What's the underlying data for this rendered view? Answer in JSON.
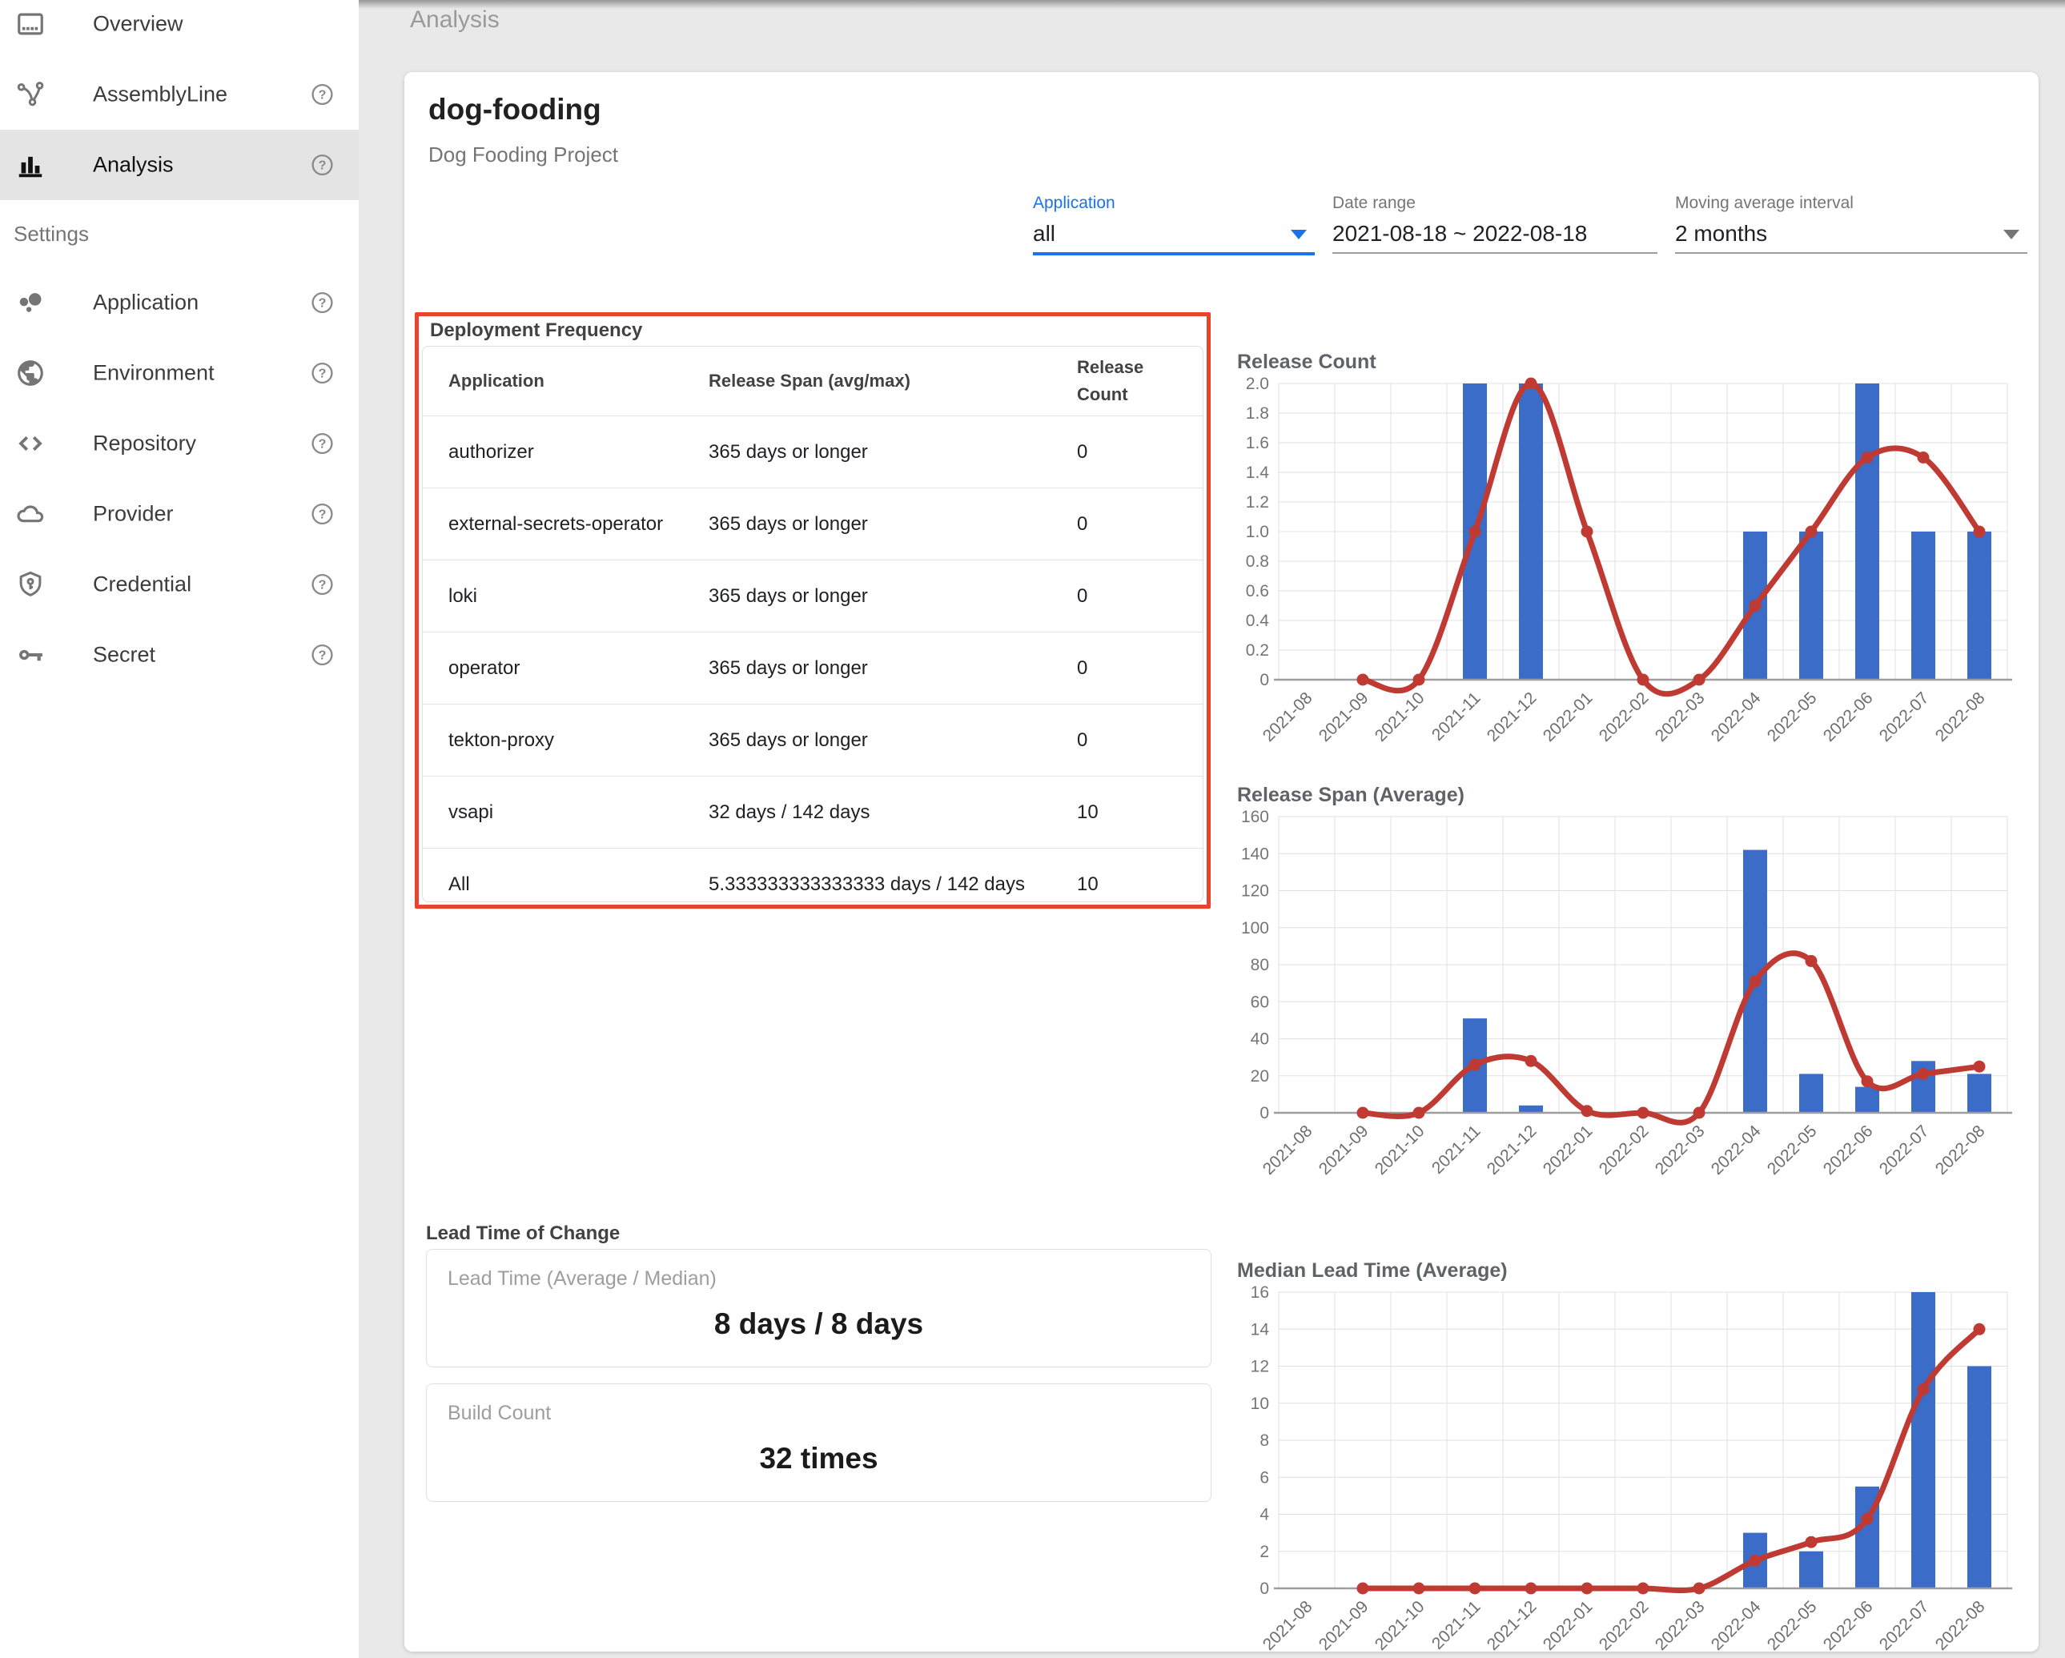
{
  "header": {
    "page_title": "Analysis"
  },
  "sidebar": {
    "settings_header": "Settings",
    "items_top": [
      {
        "label": "Overview",
        "icon": "dvr-icon",
        "help": false,
        "active": false
      },
      {
        "label": "AssemblyLine",
        "icon": "pipeline-icon",
        "help": true,
        "active": false
      },
      {
        "label": "Analysis",
        "icon": "bar-chart-icon",
        "help": true,
        "active": true
      }
    ],
    "items_settings": [
      {
        "label": "Application",
        "icon": "app-dots-icon",
        "help": true
      },
      {
        "label": "Environment",
        "icon": "globe-icon",
        "help": true
      },
      {
        "label": "Repository",
        "icon": "code-icon",
        "help": true
      },
      {
        "label": "Provider",
        "icon": "cloud-icon",
        "help": true
      },
      {
        "label": "Credential",
        "icon": "shield-key-icon",
        "help": true
      },
      {
        "label": "Secret",
        "icon": "key-icon",
        "help": true
      }
    ]
  },
  "project": {
    "name": "dog-fooding",
    "description": "Dog Fooding Project"
  },
  "filters": {
    "application": {
      "label": "Application",
      "value": "all"
    },
    "date_range": {
      "label": "Date range",
      "value": "2021-08-18 ~ 2022-08-18"
    },
    "moving_average": {
      "label": "Moving average interval",
      "value": "2 months"
    }
  },
  "deployment_frequency": {
    "title": "Deployment Frequency",
    "table": {
      "columns": [
        "Application",
        "Release Span (avg/max)",
        "Release Count"
      ],
      "rows": [
        [
          "authorizer",
          "365 days or longer",
          "0"
        ],
        [
          "external-secrets-operator",
          "365 days or longer",
          "0"
        ],
        [
          "loki",
          "365 days or longer",
          "0"
        ],
        [
          "operator",
          "365 days or longer",
          "0"
        ],
        [
          "tekton-proxy",
          "365 days or longer",
          "0"
        ],
        [
          "vsapi",
          "32 days / 142 days",
          "10"
        ],
        [
          "All",
          "5.333333333333333 days / 142 days",
          "10"
        ]
      ]
    }
  },
  "lead_time": {
    "title": "Lead Time of Change",
    "cards": [
      {
        "label": "Lead Time (Average / Median)",
        "value": "8 days / 8 days"
      },
      {
        "label": "Build Count",
        "value": "32 times"
      }
    ]
  },
  "chart_data": [
    {
      "id": "release-count",
      "type": "bar+line",
      "title": "Release Count",
      "categories": [
        "2021-08",
        "2021-09",
        "2021-10",
        "2021-11",
        "2021-12",
        "2022-01",
        "2022-02",
        "2022-03",
        "2022-04",
        "2022-05",
        "2022-06",
        "2022-07",
        "2022-08"
      ],
      "series": [
        {
          "name": "release count",
          "type": "bar",
          "values": [
            null,
            null,
            null,
            2,
            2,
            null,
            null,
            null,
            1,
            1,
            2,
            1,
            1
          ]
        },
        {
          "name": "moving average",
          "type": "line",
          "values": [
            null,
            0,
            0,
            1,
            2,
            1,
            0,
            0,
            0.5,
            1,
            1.5,
            1.5,
            1
          ]
        }
      ],
      "xlabel": "",
      "ylabel": "",
      "ylim": [
        0,
        2
      ],
      "y_step": 0.2,
      "y_decimals": 1,
      "grid": true,
      "legend": "none"
    },
    {
      "id": "release-span",
      "type": "bar+line",
      "title": "Release Span (Average)",
      "categories": [
        "2021-08",
        "2021-09",
        "2021-10",
        "2021-11",
        "2021-12",
        "2022-01",
        "2022-02",
        "2022-03",
        "2022-04",
        "2022-05",
        "2022-06",
        "2022-07",
        "2022-08"
      ],
      "series": [
        {
          "name": "release span",
          "type": "bar",
          "values": [
            null,
            null,
            null,
            51,
            4,
            null,
            null,
            null,
            142,
            21,
            14,
            28,
            21
          ]
        },
        {
          "name": "moving average",
          "type": "line",
          "values": [
            null,
            0,
            0,
            26,
            28,
            1,
            0,
            0,
            71,
            82,
            17,
            21,
            25
          ]
        }
      ],
      "xlabel": "",
      "ylabel": "",
      "ylim": [
        0,
        160
      ],
      "y_step": 20,
      "y_decimals": 0,
      "grid": true,
      "legend": "none"
    },
    {
      "id": "median-lead-time",
      "type": "bar+line",
      "title": "Median Lead Time (Average)",
      "categories": [
        "2021-08",
        "2021-09",
        "2021-10",
        "2021-11",
        "2021-12",
        "2022-01",
        "2022-02",
        "2022-03",
        "2022-04",
        "2022-05",
        "2022-06",
        "2022-07",
        "2022-08"
      ],
      "series": [
        {
          "name": "median lead time",
          "type": "bar",
          "values": [
            null,
            null,
            null,
            null,
            null,
            null,
            null,
            null,
            3,
            2,
            5.5,
            16,
            12
          ]
        },
        {
          "name": "moving average",
          "type": "line",
          "values": [
            null,
            0,
            0,
            0,
            0,
            0,
            0,
            0,
            1.5,
            2.5,
            3.75,
            10.75,
            14
          ]
        }
      ],
      "xlabel": "",
      "ylabel": "",
      "ylim": [
        0,
        16
      ],
      "y_step": 2,
      "y_decimals": 0,
      "grid": true,
      "legend": "none"
    }
  ],
  "colors": {
    "bar": "#3b6cc7",
    "line": "#bf3a33",
    "accent_blue": "#1a73e8",
    "highlight_red": "#e8432d",
    "gridline": "#e0e0e0",
    "axis": "#9e9e9e"
  }
}
